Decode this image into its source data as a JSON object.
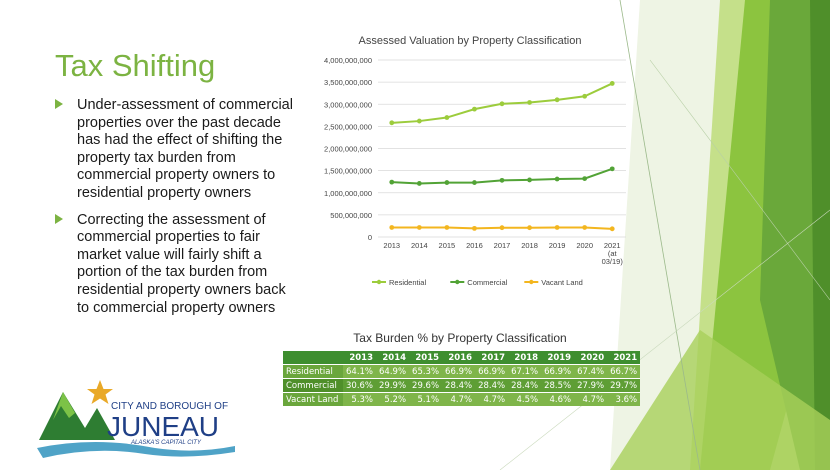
{
  "slide": {
    "title": "Tax Shifting",
    "bullets": [
      "Under-assessment of commercial properties over the past decade has had the effect of shifting the property tax burden from commercial property owners to residential property owners",
      "Correcting the assessment of commercial properties to fair market value will fairly shift a portion of the tax burden from residential property owners back to commercial property owners"
    ]
  },
  "chart_data": {
    "type": "line",
    "title": "Assessed Valuation by Property Classification",
    "categories": [
      "2013",
      "2014",
      "2015",
      "2016",
      "2017",
      "2018",
      "2019",
      "2020",
      "2021 (at 03/19)"
    ],
    "series": [
      {
        "name": "Residential",
        "color": "#9ccc3c",
        "values": [
          2580000000,
          2620000000,
          2700000000,
          2890000000,
          3010000000,
          3040000000,
          3100000000,
          3180000000,
          3470000000
        ]
      },
      {
        "name": "Commercial",
        "color": "#52a336",
        "values": [
          1240000000,
          1210000000,
          1230000000,
          1230000000,
          1280000000,
          1290000000,
          1310000000,
          1320000000,
          1540000000
        ]
      },
      {
        "name": "Vacant Land",
        "color": "#f3b61f",
        "values": [
          215000000,
          215000000,
          215000000,
          195000000,
          210000000,
          210000000,
          215000000,
          215000000,
          185000000
        ]
      }
    ],
    "ylim": [
      0,
      4000000000
    ],
    "yticks": [
      "0",
      "500,000,000",
      "1,000,000,000",
      "1,500,000,000",
      "2,000,000,000",
      "2,500,000,000",
      "3,000,000,000",
      "3,500,000,000",
      "4,000,000,000"
    ],
    "grid": true,
    "legend": "bottom"
  },
  "table": {
    "title": "Tax Burden % by Property Classification",
    "years": [
      "2013",
      "2014",
      "2015",
      "2016",
      "2017",
      "2018",
      "2019",
      "2020",
      "2021"
    ],
    "rows": [
      {
        "label": "Residential",
        "values": [
          "64.1%",
          "64.9%",
          "65.3%",
          "66.9%",
          "66.9%",
          "67.1%",
          "66.9%",
          "67.4%",
          "66.7%"
        ]
      },
      {
        "label": "Commercial",
        "values": [
          "30.6%",
          "29.9%",
          "29.6%",
          "28.4%",
          "28.4%",
          "28.4%",
          "28.5%",
          "27.9%",
          "29.7%"
        ]
      },
      {
        "label": "Vacant Land",
        "values": [
          "5.3%",
          "5.2%",
          "5.1%",
          "4.7%",
          "4.7%",
          "4.5%",
          "4.6%",
          "4.7%",
          "3.6%"
        ]
      }
    ]
  },
  "logo": {
    "line1": "CITY AND BOROUGH OF",
    "line2": "JUNEAU",
    "line3": "ALASKA'S CAPITAL CITY",
    "colors": {
      "star": "#e9a928",
      "mountain": "#2e7d32",
      "water": "#4fa3c7",
      "text": "#1f3f86"
    }
  },
  "theme": {
    "accent": "#7cb342",
    "band_dark": "#4f8f2a",
    "band_light": "#9ccc3c"
  }
}
